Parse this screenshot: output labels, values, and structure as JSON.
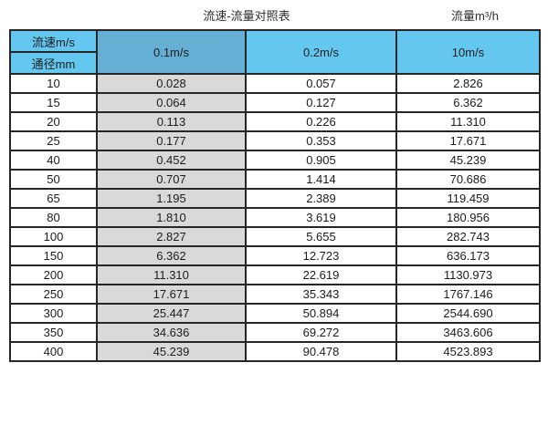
{
  "title": "流速-流量对照表",
  "flow_unit_label": "流量m³/h",
  "colors": {
    "header_light_blue": "#63c7f0",
    "header_steel_blue": "#64afd3",
    "col_gray": "#d9d9d9",
    "border": "#262626"
  },
  "chart_data": {
    "type": "table",
    "title": "流速-流量对照表",
    "unit_note": "流量m³/h",
    "corner_top": "流速m/s",
    "corner_bottom": "通径mm",
    "columns": [
      "0.1m/s",
      "0.2m/s",
      "10m/s"
    ],
    "rows": [
      {
        "diameter": "10",
        "values": [
          "0.028",
          "0.057",
          "2.826"
        ]
      },
      {
        "diameter": "15",
        "values": [
          "0.064",
          "0.127",
          "6.362"
        ]
      },
      {
        "diameter": "20",
        "values": [
          "0.113",
          "0.226",
          "11.310"
        ]
      },
      {
        "diameter": "25",
        "values": [
          "0.177",
          "0.353",
          "17.671"
        ]
      },
      {
        "diameter": "40",
        "values": [
          "0.452",
          "0.905",
          "45.239"
        ]
      },
      {
        "diameter": "50",
        "values": [
          "0.707",
          "1.414",
          "70.686"
        ]
      },
      {
        "diameter": "65",
        "values": [
          "1.195",
          "2.389",
          "119.459"
        ]
      },
      {
        "diameter": "80",
        "values": [
          "1.810",
          "3.619",
          "180.956"
        ]
      },
      {
        "diameter": "100",
        "values": [
          "2.827",
          "5.655",
          "282.743"
        ]
      },
      {
        "diameter": "150",
        "values": [
          "6.362",
          "12.723",
          "636.173"
        ]
      },
      {
        "diameter": "200",
        "values": [
          "11.310",
          "22.619",
          "1130.973"
        ]
      },
      {
        "diameter": "250",
        "values": [
          "17.671",
          "35.343",
          "1767.146"
        ]
      },
      {
        "diameter": "300",
        "values": [
          "25.447",
          "50.894",
          "2544.690"
        ]
      },
      {
        "diameter": "350",
        "values": [
          "34.636",
          "69.272",
          "3463.606"
        ]
      },
      {
        "diameter": "400",
        "values": [
          "45.239",
          "90.478",
          "4523.893"
        ]
      }
    ]
  }
}
